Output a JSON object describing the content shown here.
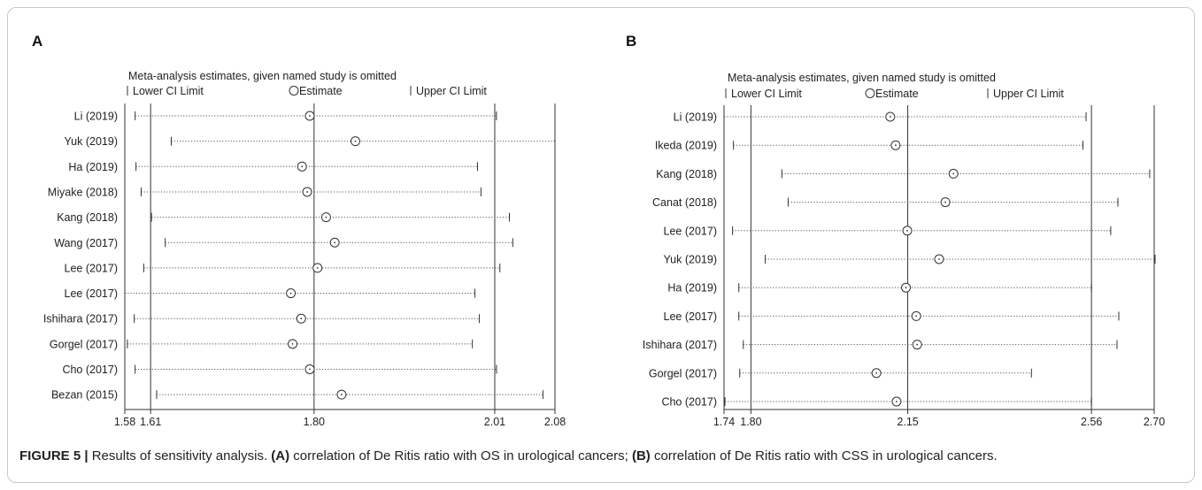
{
  "chart_data": [
    {
      "type": "forest",
      "panel": "A",
      "title": "Meta-analysis estimates, given named study is omitted",
      "legend": {
        "lower": "Lower CI Limit",
        "estimate": "Estimate",
        "upper": "Upper CI Limit"
      },
      "xlim": [
        1.58,
        2.08
      ],
      "xticks": [
        1.58,
        1.61,
        1.8,
        2.01,
        2.08
      ],
      "xtick_labels": [
        "1.58",
        "1.61",
        "1.80",
        "2.01",
        "2.08"
      ],
      "reference_lines": [
        1.61,
        1.8,
        2.01
      ],
      "studies": [
        {
          "label": "Li (2019)",
          "lower": 1.592,
          "estimate": 1.795,
          "upper": 2.012
        },
        {
          "label": "Yuk (2019)",
          "lower": 1.634,
          "estimate": 1.848,
          "upper": 2.08
        },
        {
          "label": "Ha (2019)",
          "lower": 1.593,
          "estimate": 1.786,
          "upper": 1.99
        },
        {
          "label": "Miyake (2018)",
          "lower": 1.599,
          "estimate": 1.792,
          "upper": 1.994
        },
        {
          "label": "Kang (2018)",
          "lower": 1.611,
          "estimate": 1.814,
          "upper": 2.027
        },
        {
          "label": "Wang (2017)",
          "lower": 1.627,
          "estimate": 1.824,
          "upper": 2.031
        },
        {
          "label": "Lee (2017)",
          "lower": 1.602,
          "estimate": 1.804,
          "upper": 2.016
        },
        {
          "label": "Lee (2017)",
          "lower": 1.58,
          "estimate": 1.773,
          "upper": 1.987
        },
        {
          "label": "Ishihara (2017)",
          "lower": 1.591,
          "estimate": 1.785,
          "upper": 1.992
        },
        {
          "label": "Gorgel (2017)",
          "lower": 1.583,
          "estimate": 1.775,
          "upper": 1.984
        },
        {
          "label": "Cho (2017)",
          "lower": 1.592,
          "estimate": 1.795,
          "upper": 2.012
        },
        {
          "label": "Bezan (2015)",
          "lower": 1.617,
          "estimate": 1.832,
          "upper": 2.066
        }
      ]
    },
    {
      "type": "forest",
      "panel": "B",
      "title": "Meta-analysis estimates, given named study is omitted",
      "legend": {
        "lower": "Lower CI Limit",
        "estimate": "Estimate",
        "upper": "Upper CI Limit"
      },
      "xlim": [
        1.74,
        2.7
      ],
      "xticks": [
        1.74,
        1.8,
        2.15,
        2.56,
        2.7
      ],
      "xtick_labels": [
        "1.74",
        "1.80",
        "2.15",
        "2.56",
        "2.70"
      ],
      "reference_lines": [
        1.8,
        2.15,
        2.56
      ],
      "studies": [
        {
          "label": "Li (2019)",
          "lower": 1.74,
          "estimate": 2.111,
          "upper": 2.548
        },
        {
          "label": "Ikeda (2019)",
          "lower": 1.761,
          "estimate": 2.123,
          "upper": 2.541
        },
        {
          "label": "Kang (2018)",
          "lower": 1.869,
          "estimate": 2.252,
          "upper": 2.69
        },
        {
          "label": "Canat (2018)",
          "lower": 1.883,
          "estimate": 2.234,
          "upper": 2.619
        },
        {
          "label": "Lee (2017)",
          "lower": 1.759,
          "estimate": 2.149,
          "upper": 2.603
        },
        {
          "label": "Yuk (2019)",
          "lower": 1.832,
          "estimate": 2.22,
          "upper": 2.702
        },
        {
          "label": "Ha (2019)",
          "lower": 1.773,
          "estimate": 2.146,
          "upper": 2.56
        },
        {
          "label": "Lee (2017)",
          "lower": 1.773,
          "estimate": 2.169,
          "upper": 2.621
        },
        {
          "label": "Ishihara (2017)",
          "lower": 1.783,
          "estimate": 2.171,
          "upper": 2.617
        },
        {
          "label": "Gorgel (2017)",
          "lower": 1.775,
          "estimate": 2.08,
          "upper": 2.426
        },
        {
          "label": "Cho (2017)",
          "lower": 1.742,
          "estimate": 2.125,
          "upper": 2.56
        }
      ]
    }
  ],
  "caption": {
    "figure_label": "FIGURE 5 |",
    "text_1": " Results of sensitivity analysis. ",
    "a_label": "(A)",
    "text_2": " correlation of De Ritis ratio with OS in urological cancers; ",
    "b_label": "(B)",
    "text_3": " correlation of De Ritis ratio with CSS in urological cancers."
  },
  "colors": {
    "text": "#222222",
    "line": "#333333",
    "frame": "#c9c9c9",
    "dotted": "#555555"
  }
}
